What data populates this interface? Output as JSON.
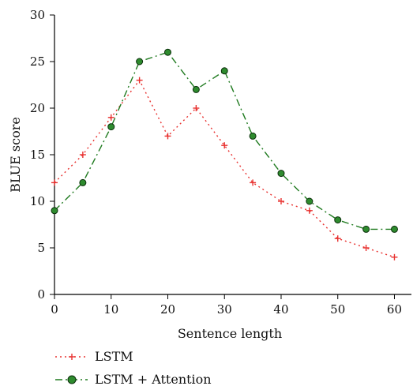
{
  "chart_data": {
    "type": "line",
    "title": "",
    "xlabel": "Sentence length",
    "ylabel": "BLUE score",
    "xlim": [
      0,
      63
    ],
    "ylim": [
      0,
      30
    ],
    "xticks": [
      0,
      10,
      20,
      30,
      40,
      50,
      60
    ],
    "yticks": [
      0,
      5,
      10,
      15,
      20,
      25,
      30
    ],
    "grid": false,
    "legend_position": "bottom-left",
    "x": [
      0,
      5,
      10,
      15,
      20,
      25,
      30,
      35,
      40,
      45,
      50,
      55,
      60
    ],
    "series": [
      {
        "name": "LSTM",
        "values": [
          12,
          15,
          19,
          23,
          17,
          20,
          16,
          12,
          10,
          9,
          6,
          5,
          4
        ],
        "color": "#e8312f",
        "line_style": "dotted",
        "marker": "plus"
      },
      {
        "name": "LSTM + Attention",
        "values": [
          9,
          12,
          18,
          25,
          26,
          22,
          24,
          17,
          13,
          10,
          8,
          7,
          7
        ],
        "color": "#1f7a1f",
        "marker_fill": "#2e8b2e",
        "line_style": "dash-dot",
        "marker": "circle"
      }
    ]
  }
}
